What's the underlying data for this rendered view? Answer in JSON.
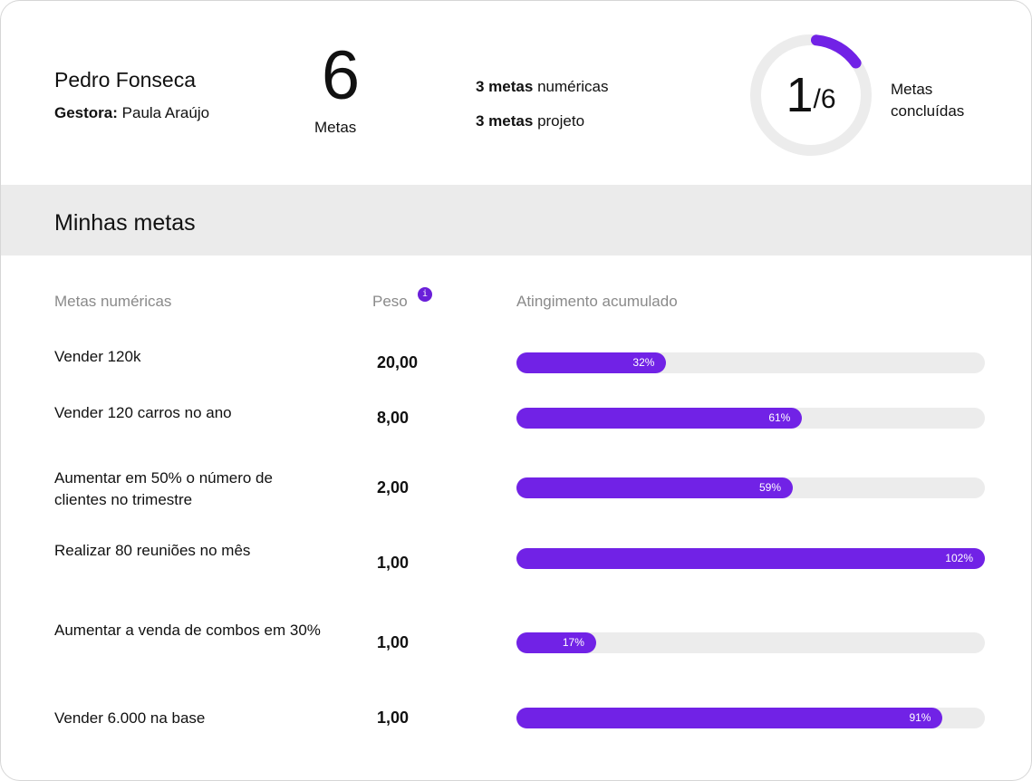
{
  "profile": {
    "name": "Pedro Fonseca",
    "manager_label": "Gestora:",
    "manager_name": "Paula Araújo"
  },
  "total": {
    "count": "6",
    "label": "Metas"
  },
  "summary": [
    {
      "bold": "3 metas",
      "rest": "numéricas"
    },
    {
      "bold": "3 metas",
      "rest": "projeto"
    }
  ],
  "completed": {
    "done": "1",
    "total": "/6",
    "label": "Metas concluídas",
    "fraction": 0.1667,
    "accent": "#7122e6"
  },
  "section_title": "Minhas metas",
  "columns": {
    "goal": "Metas numéricas",
    "weight": "Peso",
    "info": "i",
    "progress": "Atingimento acumulado"
  },
  "goals": [
    {
      "name": "Vender 120k",
      "weight": "20,00",
      "label": "32%",
      "pct": 32
    },
    {
      "name": "Vender 120 carros no ano",
      "weight": "8,00",
      "label": "61%",
      "pct": 61
    },
    {
      "name": "Aumentar em 50% o número de clientes no trimestre",
      "weight": "2,00",
      "label": "59%",
      "pct": 59
    },
    {
      "name": "Realizar 80 reuniões no mês",
      "weight": "1,00",
      "label": "102%",
      "pct": 102
    },
    {
      "name": "Aumentar a venda de combos em 30%",
      "weight": "1,00",
      "label": "17%",
      "pct": 17
    },
    {
      "name": "Vender 6.000 na base",
      "weight": "1,00",
      "label": "91%",
      "pct": 91
    }
  ]
}
